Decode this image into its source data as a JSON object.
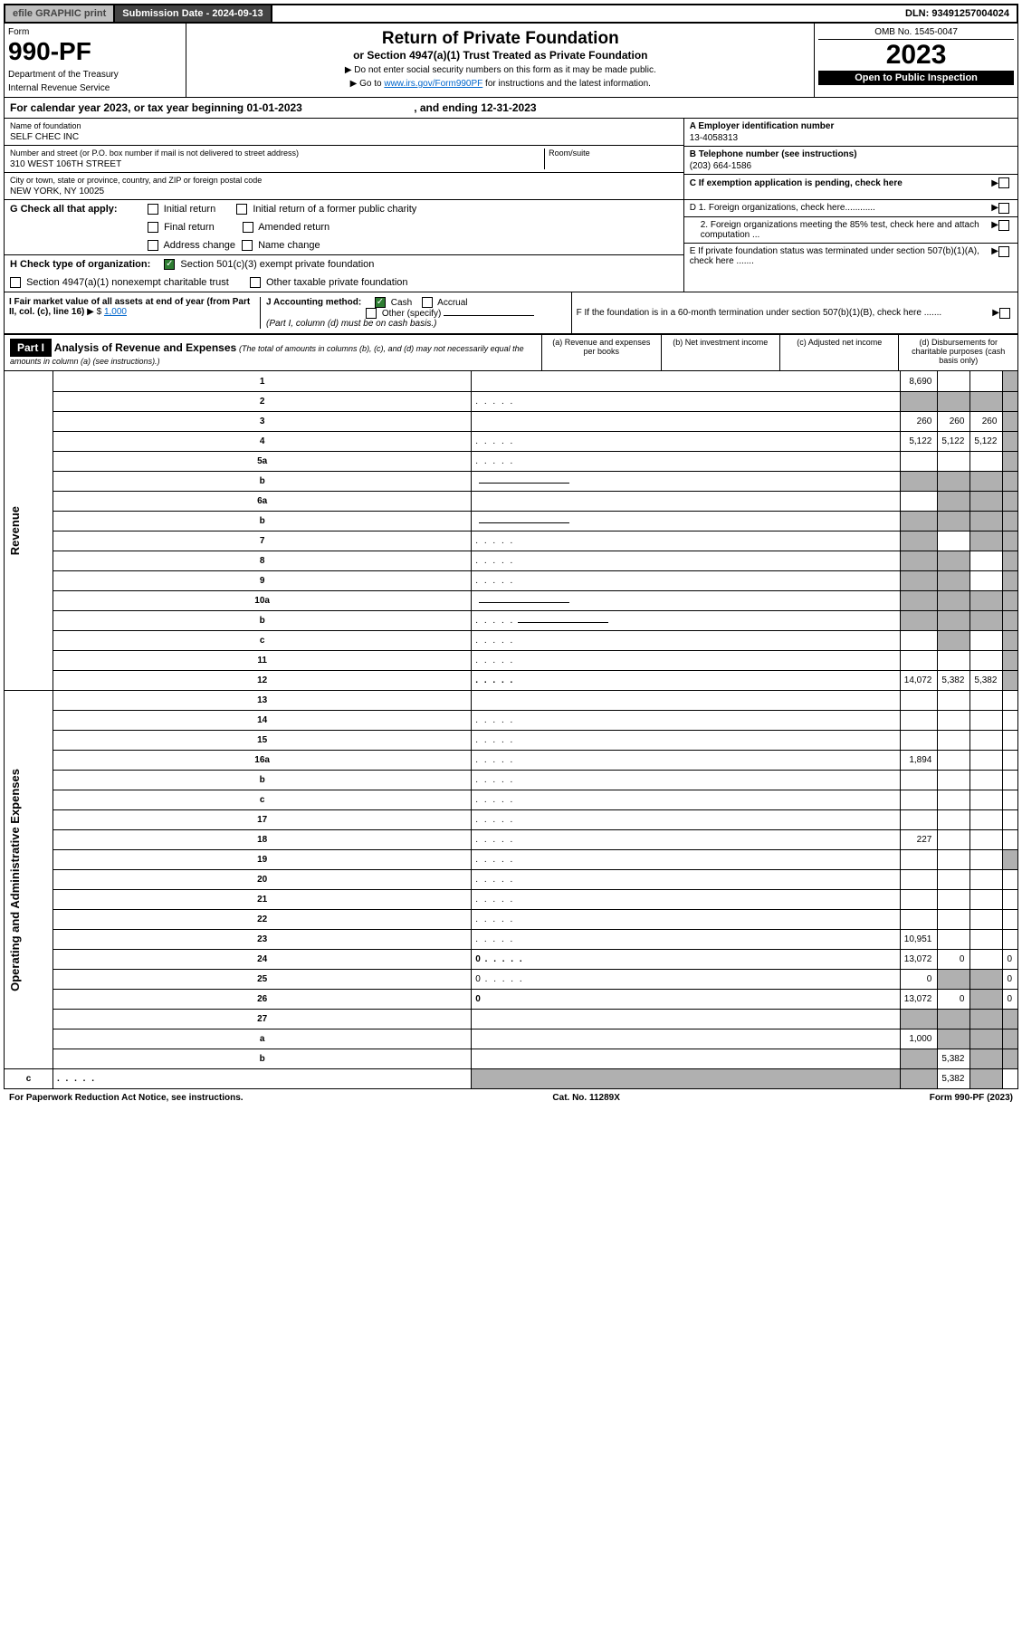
{
  "topbar": {
    "efile": "efile GRAPHIC print",
    "sub_date_label": "Submission Date - ",
    "sub_date": "2024-09-13",
    "dln_label": "DLN: ",
    "dln": "93491257004024"
  },
  "header": {
    "form_label": "Form",
    "form_num": "990-PF",
    "dept1": "Department of the Treasury",
    "dept2": "Internal Revenue Service",
    "title": "Return of Private Foundation",
    "subtitle": "or Section 4947(a)(1) Trust Treated as Private Foundation",
    "instr1": "▶ Do not enter social security numbers on this form as it may be made public.",
    "instr2_pre": "▶ Go to ",
    "instr2_link": "www.irs.gov/Form990PF",
    "instr2_post": " for instructions and the latest information.",
    "omb": "OMB No. 1545-0047",
    "year": "2023",
    "inspection": "Open to Public Inspection"
  },
  "calyear": {
    "text_pre": "For calendar year 2023, or tax year beginning ",
    "begin": "01-01-2023",
    "text_mid": " , and ending ",
    "end": "12-31-2023"
  },
  "info": {
    "name_label": "Name of foundation",
    "name": "SELF CHEC INC",
    "addr_label": "Number and street (or P.O. box number if mail is not delivered to street address)",
    "addr": "310 WEST 106TH STREET",
    "room_label": "Room/suite",
    "city_label": "City or town, state or province, country, and ZIP or foreign postal code",
    "city": "NEW YORK, NY  10025",
    "ein_label": "A Employer identification number",
    "ein": "13-4058313",
    "tel_label": "B Telephone number (see instructions)",
    "tel": "(203) 664-1586",
    "pending_label": "C If exemption application is pending, check here",
    "g_label": "G Check all that apply:",
    "g_opts": [
      "Initial return",
      "Initial return of a former public charity",
      "Final return",
      "Amended return",
      "Address change",
      "Name change"
    ],
    "d1": "D 1. Foreign organizations, check here............",
    "d2": "2. Foreign organizations meeting the 85% test, check here and attach computation ...",
    "h_label": "H Check type of organization:",
    "h_opt1": "Section 501(c)(3) exempt private foundation",
    "h_opt2": "Section 4947(a)(1) nonexempt charitable trust",
    "h_opt3": "Other taxable private foundation",
    "e_label": "E  If private foundation status was terminated under section 507(b)(1)(A), check here .......",
    "i_label": "I Fair market value of all assets at end of year (from Part II, col. (c), line 16)",
    "i_val": "1,000",
    "j_label": "J Accounting method:",
    "j_cash": "Cash",
    "j_accrual": "Accrual",
    "j_other": "Other (specify)",
    "j_note": "(Part I, column (d) must be on cash basis.)",
    "f_label": "F  If the foundation is in a 60-month termination under section 507(b)(1)(B), check here ......."
  },
  "part1": {
    "label": "Part I",
    "title": "Analysis of Revenue and Expenses",
    "note": "(The total of amounts in columns (b), (c), and (d) may not necessarily equal the amounts in column (a) (see instructions).)",
    "col_a": "(a)   Revenue and expenses per books",
    "col_b": "(b)   Net investment income",
    "col_c": "(c)   Adjusted net income",
    "col_d": "(d)   Disbursements for charitable purposes (cash basis only)"
  },
  "sidelabels": {
    "revenue": "Revenue",
    "expenses": "Operating and Administrative Expenses"
  },
  "rows": [
    {
      "n": "1",
      "d": "",
      "a": "8,690",
      "b": "",
      "c": "",
      "grey": [
        "d"
      ]
    },
    {
      "n": "2",
      "d": "",
      "a": "",
      "b": "",
      "c": "",
      "grey": [
        "a",
        "b",
        "c",
        "d"
      ],
      "dotted": true
    },
    {
      "n": "3",
      "d": "",
      "a": "260",
      "b": "260",
      "c": "260",
      "grey": [
        "d"
      ]
    },
    {
      "n": "4",
      "d": "",
      "a": "5,122",
      "b": "5,122",
      "c": "5,122",
      "grey": [
        "d"
      ],
      "dotted": true
    },
    {
      "n": "5a",
      "d": "",
      "a": "",
      "b": "",
      "c": "",
      "grey": [
        "d"
      ],
      "dotted": true
    },
    {
      "n": "b",
      "d": "",
      "a": "",
      "b": "",
      "c": "",
      "grey": [
        "a",
        "b",
        "c",
        "d"
      ],
      "field": true
    },
    {
      "n": "6a",
      "d": "",
      "a": "",
      "b": "",
      "c": "",
      "grey": [
        "b",
        "c",
        "d"
      ]
    },
    {
      "n": "b",
      "d": "",
      "a": "",
      "b": "",
      "c": "",
      "grey": [
        "a",
        "b",
        "c",
        "d"
      ],
      "field": true
    },
    {
      "n": "7",
      "d": "",
      "a": "",
      "b": "",
      "c": "",
      "grey": [
        "a",
        "c",
        "d"
      ],
      "dotted": true
    },
    {
      "n": "8",
      "d": "",
      "a": "",
      "b": "",
      "c": "",
      "grey": [
        "a",
        "b",
        "d"
      ],
      "dotted": true
    },
    {
      "n": "9",
      "d": "",
      "a": "",
      "b": "",
      "c": "",
      "grey": [
        "a",
        "b",
        "d"
      ],
      "dotted": true
    },
    {
      "n": "10a",
      "d": "",
      "a": "",
      "b": "",
      "c": "",
      "grey": [
        "a",
        "b",
        "c",
        "d"
      ],
      "field": true
    },
    {
      "n": "b",
      "d": "",
      "a": "",
      "b": "",
      "c": "",
      "grey": [
        "a",
        "b",
        "c",
        "d"
      ],
      "field": true,
      "dotted": true
    },
    {
      "n": "c",
      "d": "",
      "a": "",
      "b": "",
      "c": "",
      "grey": [
        "b",
        "d"
      ],
      "dotted": true
    },
    {
      "n": "11",
      "d": "",
      "a": "",
      "b": "",
      "c": "",
      "grey": [
        "d"
      ],
      "dotted": true
    },
    {
      "n": "12",
      "d": "",
      "a": "14,072",
      "b": "5,382",
      "c": "5,382",
      "grey": [
        "d"
      ],
      "bold": true,
      "dotted": true
    },
    {
      "n": "13",
      "d": "",
      "a": "",
      "b": "",
      "c": ""
    },
    {
      "n": "14",
      "d": "",
      "a": "",
      "b": "",
      "c": "",
      "dotted": true
    },
    {
      "n": "15",
      "d": "",
      "a": "",
      "b": "",
      "c": "",
      "dotted": true
    },
    {
      "n": "16a",
      "d": "",
      "a": "1,894",
      "b": "",
      "c": "",
      "dotted": true
    },
    {
      "n": "b",
      "d": "",
      "a": "",
      "b": "",
      "c": "",
      "dotted": true
    },
    {
      "n": "c",
      "d": "",
      "a": "",
      "b": "",
      "c": "",
      "dotted": true
    },
    {
      "n": "17",
      "d": "",
      "a": "",
      "b": "",
      "c": "",
      "dotted": true
    },
    {
      "n": "18",
      "d": "",
      "a": "227",
      "b": "",
      "c": "",
      "dotted": true
    },
    {
      "n": "19",
      "d": "",
      "a": "",
      "b": "",
      "c": "",
      "grey": [
        "d"
      ],
      "dotted": true
    },
    {
      "n": "20",
      "d": "",
      "a": "",
      "b": "",
      "c": "",
      "dotted": true
    },
    {
      "n": "21",
      "d": "",
      "a": "",
      "b": "",
      "c": "",
      "dotted": true
    },
    {
      "n": "22",
      "d": "",
      "a": "",
      "b": "",
      "c": "",
      "dotted": true
    },
    {
      "n": "23",
      "d": "",
      "a": "10,951",
      "b": "",
      "c": "",
      "dotted": true
    },
    {
      "n": "24",
      "d": "0",
      "a": "13,072",
      "b": "0",
      "c": "",
      "bold": true,
      "dotted": true
    },
    {
      "n": "25",
      "d": "0",
      "a": "0",
      "b": "",
      "c": "",
      "grey": [
        "b",
        "c"
      ],
      "dotted": true
    },
    {
      "n": "26",
      "d": "0",
      "a": "13,072",
      "b": "0",
      "c": "",
      "bold": true,
      "grey": [
        "c"
      ]
    },
    {
      "n": "27",
      "d": "",
      "a": "",
      "b": "",
      "c": "",
      "grey": [
        "a",
        "b",
        "c",
        "d"
      ]
    },
    {
      "n": "a",
      "d": "",
      "a": "1,000",
      "b": "",
      "c": "",
      "bold": true,
      "grey": [
        "b",
        "c",
        "d"
      ]
    },
    {
      "n": "b",
      "d": "",
      "a": "",
      "b": "5,382",
      "c": "",
      "bold": true,
      "grey": [
        "a",
        "c",
        "d"
      ]
    },
    {
      "n": "c",
      "d": "",
      "a": "",
      "b": "",
      "c": "5,382",
      "bold": true,
      "grey": [
        "a",
        "b",
        "d"
      ],
      "dotted": true
    }
  ],
  "footer": {
    "left": "For Paperwork Reduction Act Notice, see instructions.",
    "center": "Cat. No. 11289X",
    "right": "Form 990-PF (2023)"
  }
}
